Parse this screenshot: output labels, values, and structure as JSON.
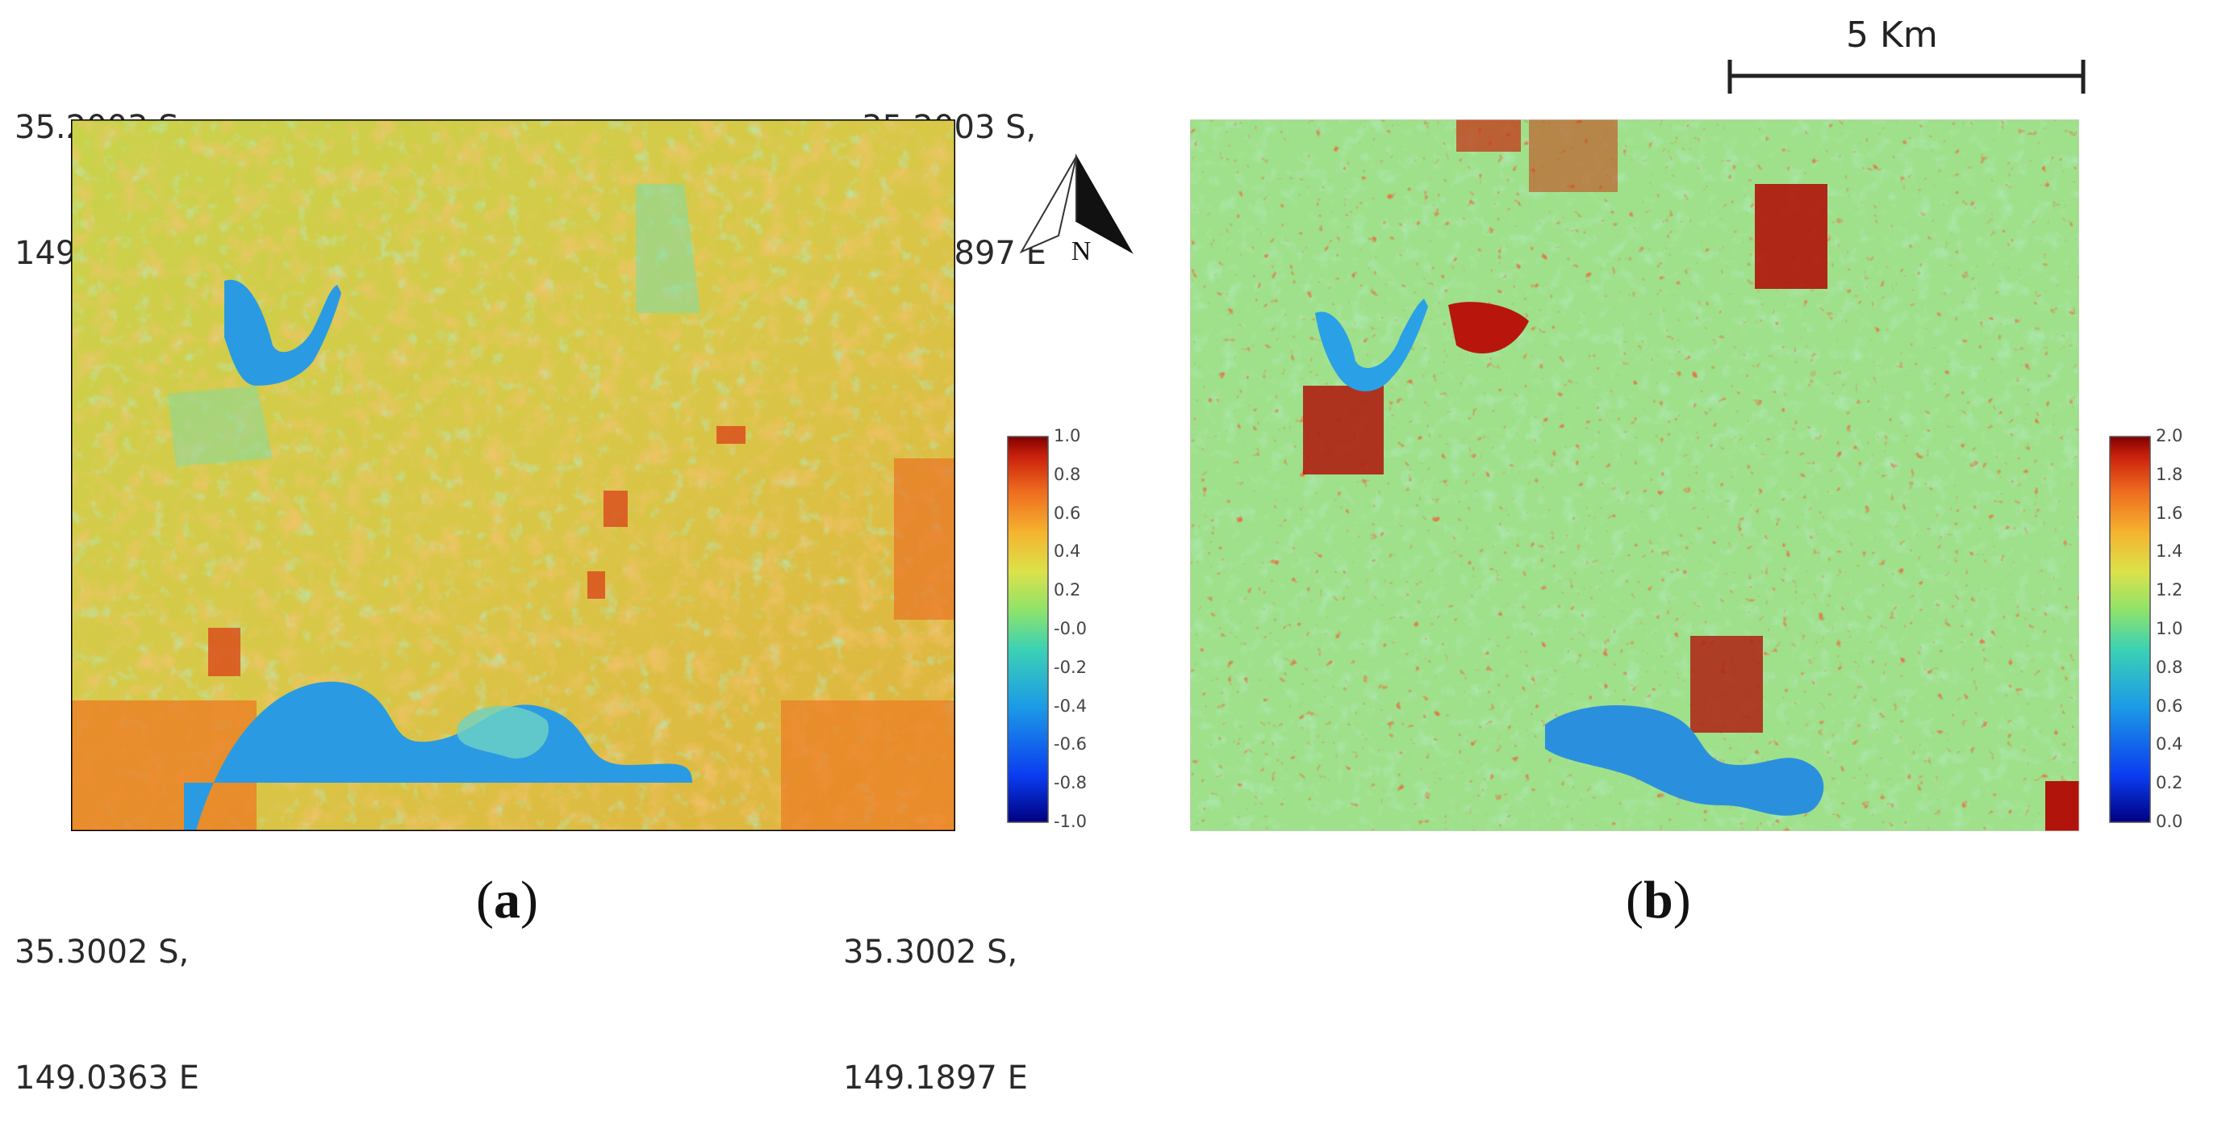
{
  "panel_a": {
    "label": "a",
    "corners": {
      "top_left": [
        "35.2003 S,",
        "149.0363 E"
      ],
      "top_right": [
        "35.2003 S,",
        "149.1897 E"
      ],
      "bottom_left": [
        "35.3002 S,",
        "149.0363 E"
      ],
      "bottom_right": [
        "35.3002 S,",
        "149.1897 E"
      ]
    },
    "colorbar": {
      "min": -1.0,
      "max": 1.0,
      "ticks": [
        "1.0",
        "0.8",
        "0.6",
        "0.4",
        "0.2",
        "-0.0",
        "-0.2",
        "-0.4",
        "-0.6",
        "-0.8",
        "-1.0"
      ]
    }
  },
  "panel_b": {
    "label": "b",
    "colorbar": {
      "min": 0.0,
      "max": 2.0,
      "ticks": [
        "2.0",
        "1.8",
        "1.6",
        "1.4",
        "1.2",
        "1.0",
        "0.8",
        "0.6",
        "0.4",
        "0.2",
        "0.0"
      ]
    }
  },
  "north_arrow": {
    "label": "N"
  },
  "scale_bar": {
    "label": "5 Km"
  },
  "colors": {
    "ramp": [
      "#00007f",
      "#0a3cf0",
      "#1c9be6",
      "#3cd2b4",
      "#8fe36a",
      "#dbe24a",
      "#f5b430",
      "#ee6a1e",
      "#c8200c",
      "#800000"
    ],
    "water": "#1e90e0"
  }
}
